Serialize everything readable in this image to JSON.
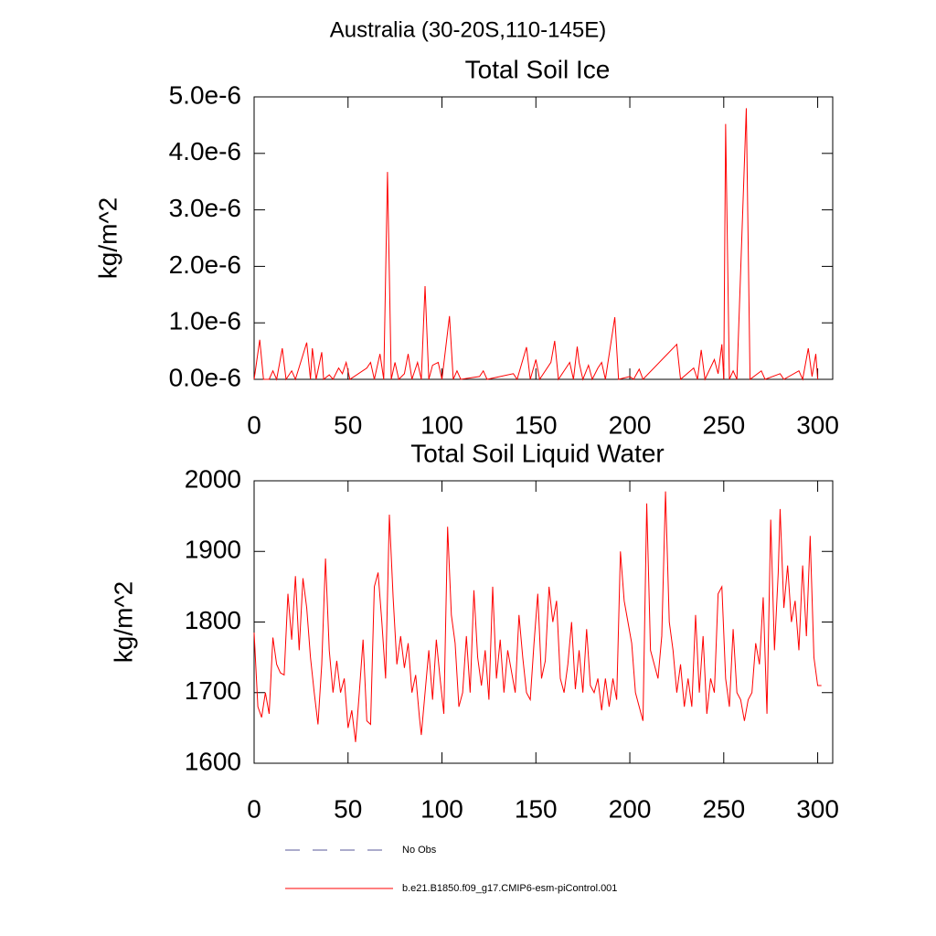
{
  "title": "Australia (30-20S,110-145E)",
  "legend": [
    {
      "name": "No Obs",
      "color": "#5a5a9a",
      "dash": true
    },
    {
      "name": "b.e21.B1850.f09_g17.CMIP6-esm-piControl.001",
      "color": "#ff0000",
      "dash": false
    }
  ],
  "chart_data": [
    {
      "type": "line",
      "title": "Total Soil Ice",
      "ylabel": "kg/m^2",
      "xlim": [
        0,
        308
      ],
      "xticks": [
        0,
        50,
        100,
        150,
        200,
        250,
        300
      ],
      "ylim": [
        0,
        5e-06
      ],
      "yticks": [
        {
          "value": 0,
          "label": "0.0e-6"
        },
        {
          "value": 1e-06,
          "label": "1.0e-6"
        },
        {
          "value": 2e-06,
          "label": "2.0e-6"
        },
        {
          "value": 3e-06,
          "label": "3.0e-6"
        },
        {
          "value": 4e-06,
          "label": "4.0e-6"
        },
        {
          "value": 5e-06,
          "label": "5.0e-6"
        }
      ],
      "x": [
        0,
        3,
        5,
        8,
        10,
        12,
        15,
        17,
        20,
        22,
        28,
        30,
        31,
        33,
        36,
        37,
        40,
        42,
        45,
        47,
        49,
        51,
        60,
        62,
        64,
        67,
        69,
        71,
        73,
        75,
        77,
        80,
        82,
        84,
        87,
        89,
        91,
        93,
        95,
        98,
        100,
        104,
        106,
        108,
        110,
        120,
        122,
        124,
        138,
        140,
        145,
        147,
        150,
        152,
        158,
        160,
        162,
        165,
        168,
        170,
        172,
        173,
        175,
        178,
        180,
        183,
        185,
        187,
        192,
        194,
        200,
        202,
        205,
        207,
        225,
        227,
        234,
        236,
        238,
        240,
        245,
        247,
        249,
        250,
        251,
        253,
        255,
        257,
        262,
        264,
        270,
        272,
        280,
        282,
        290,
        292,
        295,
        297,
        299,
        300
      ],
      "series": [
        {
          "name": "b.e21.B1850.f09_g17.CMIP6-esm-piControl.001",
          "color": "#ff0000",
          "values": [
            0,
            7e-07,
            0,
            0,
            1.5e-07,
            0,
            5.5e-07,
            0,
            1.5e-07,
            0,
            6.5e-07,
            0,
            5.5e-07,
            0,
            4.8e-07,
            0,
            8e-08,
            0,
            2e-07,
            1e-07,
            3e-07,
            0,
            2e-07,
            3e-07,
            0,
            4.5e-07,
            0,
            3.67e-06,
            0,
            3e-07,
            0,
            1e-07,
            4.5e-07,
            0,
            3e-07,
            0,
            1.65e-06,
            0,
            2.5e-07,
            3e-07,
            0,
            1.12e-06,
            0,
            1.5e-07,
            0,
            5e-08,
            1.5e-07,
            0,
            1e-07,
            0,
            5.7e-07,
            0,
            3.5e-07,
            0,
            3e-07,
            6.8e-07,
            0,
            1.5e-07,
            3e-07,
            0,
            5.8e-07,
            3e-07,
            0,
            2.5e-07,
            0,
            2e-07,
            3e-07,
            0,
            1.1e-06,
            0,
            5e-08,
            0,
            1.8e-07,
            0,
            6.2e-07,
            0,
            2e-07,
            0,
            5.2e-07,
            0,
            3.5e-07,
            1e-07,
            6.2e-07,
            0,
            4.52e-06,
            0,
            1.5e-07,
            0,
            4.8e-06,
            0,
            1.5e-07,
            0,
            1e-07,
            0,
            1.5e-07,
            0,
            5.5e-07,
            5e-08,
            4.5e-07,
            0
          ]
        }
      ]
    },
    {
      "type": "line",
      "title": "Total Soil Liquid Water",
      "ylabel": "kg/m^2",
      "xlim": [
        0,
        308
      ],
      "xticks": [
        0,
        50,
        100,
        150,
        200,
        250,
        300
      ],
      "ylim": [
        1600,
        2000
      ],
      "yticks": [
        1600,
        1700,
        1800,
        1900,
        2000
      ],
      "x": [
        0,
        2,
        4,
        6,
        8,
        10,
        12,
        14,
        16,
        18,
        20,
        22,
        24,
        26,
        28,
        30,
        32,
        34,
        36,
        38,
        40,
        42,
        44,
        46,
        48,
        50,
        52,
        54,
        56,
        58,
        60,
        62,
        64,
        66,
        68,
        70,
        72,
        74,
        76,
        78,
        80,
        82,
        84,
        86,
        88,
        89,
        91,
        93,
        95,
        97,
        99,
        101,
        103,
        105,
        107,
        109,
        111,
        113,
        115,
        117,
        119,
        121,
        123,
        125,
        127,
        129,
        131,
        133,
        135,
        137,
        139,
        141,
        143,
        145,
        147,
        149,
        151,
        153,
        155,
        157,
        159,
        161,
        163,
        165,
        167,
        169,
        171,
        173,
        175,
        177,
        179,
        181,
        183,
        185,
        187,
        189,
        191,
        193,
        195,
        197,
        199,
        201,
        203,
        205,
        207,
        209,
        211,
        213,
        215,
        217,
        219,
        221,
        223,
        225,
        227,
        229,
        231,
        233,
        235,
        237,
        239,
        241,
        243,
        245,
        247,
        249,
        251,
        253,
        255,
        257,
        259,
        261,
        263,
        265,
        267,
        269,
        271,
        273,
        275,
        277,
        279,
        280,
        282,
        284,
        286,
        288,
        290,
        292,
        294,
        296,
        298,
        300,
        302
      ],
      "series": [
        {
          "name": "b.e21.B1850.f09_g17.CMIP6-esm-piControl.001",
          "color": "#ff0000",
          "values": [
            1785,
            1680,
            1665,
            1700,
            1670,
            1778,
            1740,
            1728,
            1725,
            1840,
            1775,
            1865,
            1760,
            1862,
            1820,
            1750,
            1700,
            1655,
            1740,
            1890,
            1760,
            1700,
            1745,
            1700,
            1720,
            1650,
            1675,
            1630,
            1700,
            1775,
            1660,
            1655,
            1850,
            1870,
            1800,
            1720,
            1952,
            1835,
            1740,
            1780,
            1735,
            1770,
            1700,
            1725,
            1665,
            1640,
            1700,
            1760,
            1690,
            1775,
            1720,
            1670,
            1935,
            1810,
            1770,
            1680,
            1700,
            1780,
            1700,
            1845,
            1750,
            1710,
            1760,
            1690,
            1850,
            1720,
            1775,
            1700,
            1760,
            1730,
            1700,
            1810,
            1750,
            1700,
            1690,
            1770,
            1840,
            1720,
            1745,
            1850,
            1800,
            1830,
            1720,
            1700,
            1740,
            1800,
            1705,
            1760,
            1700,
            1790,
            1710,
            1700,
            1720,
            1675,
            1720,
            1680,
            1720,
            1690,
            1900,
            1830,
            1800,
            1770,
            1700,
            1680,
            1660,
            1968,
            1760,
            1740,
            1720,
            1780,
            1985,
            1800,
            1760,
            1700,
            1740,
            1680,
            1720,
            1680,
            1810,
            1700,
            1780,
            1670,
            1720,
            1700,
            1840,
            1850,
            1720,
            1680,
            1790,
            1700,
            1690,
            1660,
            1690,
            1700,
            1770,
            1740,
            1835,
            1670,
            1945,
            1760,
            1870,
            1960,
            1820,
            1880,
            1800,
            1830,
            1760,
            1880,
            1780,
            1922,
            1750,
            1710,
            1710
          ]
        }
      ]
    }
  ]
}
